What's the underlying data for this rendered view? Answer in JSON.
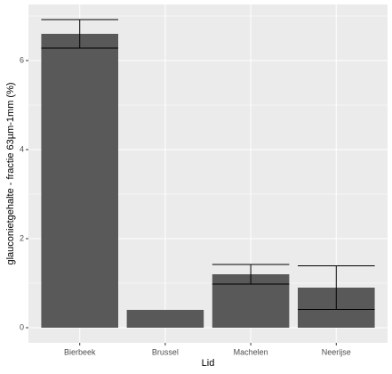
{
  "chart_data": {
    "type": "bar",
    "x_label": "Lid",
    "y_label": "glauconietgehalte - fractie 63µm-1mm (%)",
    "categories": [
      "Bierbeek",
      "Brussel",
      "Machelen",
      "Neerijse"
    ],
    "values": [
      6.6,
      0.4,
      1.2,
      0.9
    ],
    "errors": [
      0.32,
      null,
      0.22,
      0.49
    ],
    "color": "#595959",
    "error_color": "#000000",
    "ylim": [
      -0.34,
      7.26
    ],
    "yticks": [
      0,
      2,
      4,
      6
    ],
    "minor_yticks": [
      1,
      3,
      5,
      7
    ],
    "grid": true
  }
}
